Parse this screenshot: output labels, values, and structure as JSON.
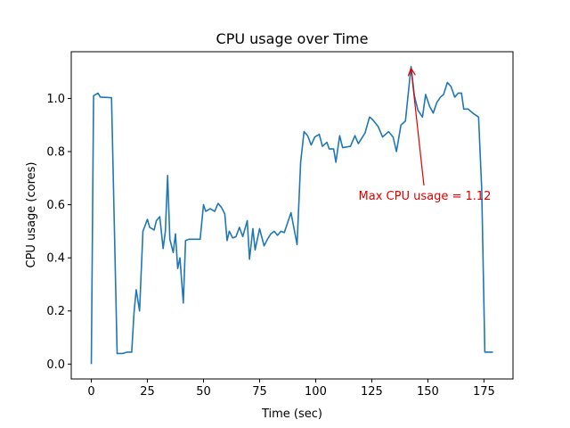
{
  "chart_data": {
    "type": "line",
    "title": "CPU usage over Time",
    "x_label": "Time (sec)",
    "y_label": "CPU usage (cores)",
    "annotation": "Max CPU usage = 1.12",
    "annotation_color": "#e00000",
    "xlim": [
      -8.95,
      187.95
    ],
    "ylim": [
      -0.056,
      1.176
    ],
    "xticks": [
      0,
      25,
      50,
      75,
      100,
      125,
      150,
      175
    ],
    "yticks": [
      {
        "value": 0,
        "label": "0.0"
      },
      0.2,
      0.4,
      0.6,
      0.8,
      {
        "value": 1,
        "label": "1.0"
      }
    ],
    "series": [
      {
        "name": "CPU usage",
        "color": "#1f77b4",
        "x": [
          0,
          1,
          3,
          4,
          9,
          11.5,
          14,
          16,
          18,
          19,
          20,
          21.5,
          23,
          25,
          26,
          28,
          29,
          30.5,
          32,
          33,
          34,
          35,
          36.5,
          37.5,
          38.5,
          39.5,
          41,
          42,
          43.5,
          48.5,
          50,
          51,
          53,
          55,
          56.5,
          58,
          59.5,
          60.5,
          61.5,
          63,
          64.5,
          66,
          67.5,
          69.5,
          70.5,
          72,
          73,
          75,
          77,
          78.5,
          80,
          81.5,
          83,
          84.5,
          86,
          89,
          91.7,
          93.3,
          94.8,
          96.4,
          98,
          99.6,
          101.6,
          103,
          105,
          106,
          108,
          109,
          110.7,
          112,
          115.5,
          117.5,
          119,
          122,
          124,
          125.4,
          127.8,
          129.8,
          132.5,
          134.5,
          136,
          138,
          140,
          142.5,
          144,
          145.6,
          147.6,
          149,
          150.8,
          152.4,
          154,
          155.6,
          157,
          158.7,
          160.3,
          162,
          163.5,
          165,
          166,
          168,
          170,
          172.6,
          174,
          175.4,
          179
        ],
        "values": [
          0.0,
          1.01,
          1.02,
          1.005,
          1.003,
          0.04,
          0.04,
          0.045,
          0.045,
          0.19,
          0.28,
          0.2,
          0.5,
          0.545,
          0.515,
          0.505,
          0.54,
          0.555,
          0.435,
          0.5,
          0.71,
          0.47,
          0.42,
          0.49,
          0.36,
          0.4,
          0.23,
          0.465,
          0.47,
          0.47,
          0.6,
          0.575,
          0.585,
          0.575,
          0.605,
          0.59,
          0.565,
          0.465,
          0.5,
          0.475,
          0.48,
          0.515,
          0.48,
          0.54,
          0.395,
          0.51,
          0.43,
          0.51,
          0.445,
          0.47,
          0.49,
          0.5,
          0.485,
          0.5,
          0.495,
          0.57,
          0.45,
          0.76,
          0.875,
          0.86,
          0.825,
          0.855,
          0.865,
          0.82,
          0.835,
          0.81,
          0.81,
          0.76,
          0.86,
          0.815,
          0.82,
          0.86,
          0.83,
          0.87,
          0.93,
          0.92,
          0.895,
          0.855,
          0.875,
          0.855,
          0.8,
          0.9,
          0.915,
          1.12,
          1.01,
          0.955,
          0.93,
          1.015,
          0.97,
          0.945,
          0.985,
          1.005,
          1.015,
          1.06,
          1.045,
          1.005,
          1.02,
          1.02,
          0.96,
          0.96,
          0.945,
          0.93,
          0.66,
          0.045,
          0.045
        ]
      }
    ]
  }
}
